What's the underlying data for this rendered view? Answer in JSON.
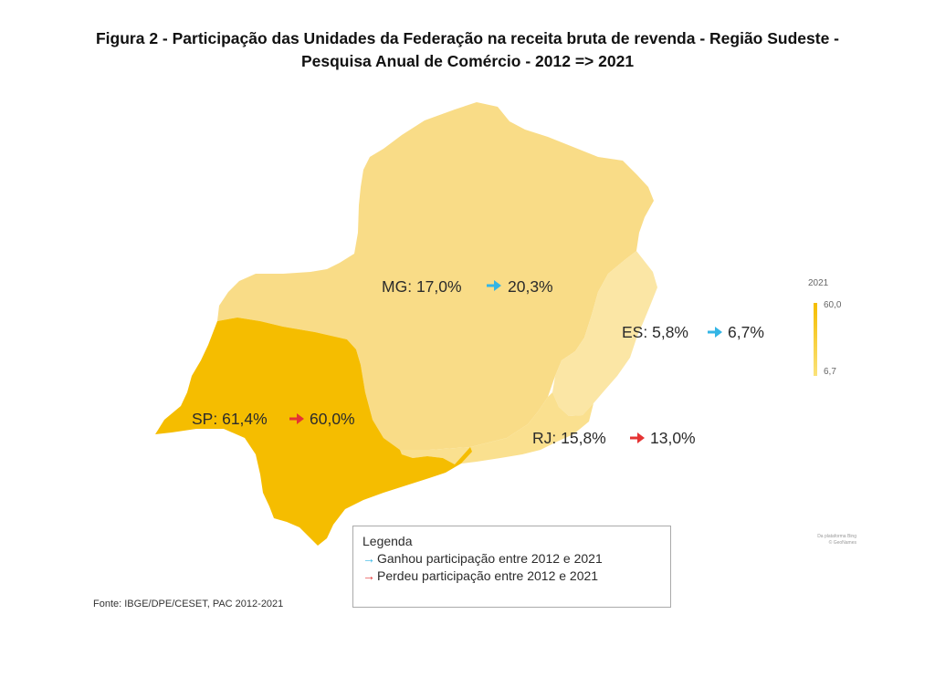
{
  "title": {
    "line1": "Figura 2 - Participação das Unidades da Federação na receita bruta de revenda - Região Sudeste -",
    "line2": "Pesquisa Anual de Comércio - 2012 => 2021"
  },
  "states": {
    "mg": {
      "abbr": "MG",
      "share_2012": "17,0%",
      "share_2021": "20,3%",
      "trend": "up",
      "color": "#f9dc87"
    },
    "es": {
      "abbr": "ES",
      "share_2012": "5,8%",
      "share_2021": "6,7%",
      "trend": "up",
      "color": "#fbe6a5"
    },
    "sp": {
      "abbr": "SP",
      "share_2012": "61,4%",
      "share_2021": "60,0%",
      "trend": "down",
      "color": "#f5bd00"
    },
    "rj": {
      "abbr": "RJ",
      "share_2012": "15,8%",
      "share_2021": "13,0%",
      "trend": "down",
      "color": "#fae08f"
    }
  },
  "scale": {
    "title": "2021",
    "max": "60,0",
    "min": "6,7",
    "color_max": "#f5bd00",
    "color_min": "#fae27a"
  },
  "attribution": {
    "line1": "Da plataforma Bing",
    "line2": "© GeoNames"
  },
  "legend": {
    "title": "Legenda",
    "up_text": "Ganhou participação entre 2012 e 2021",
    "down_text": "Perdeu participação entre 2012 e 2021",
    "up_color": "#33b5e5",
    "down_color": "#e53333"
  },
  "source": "Fonte: IBGE/DPE/CESET, PAC 2012-2021"
}
